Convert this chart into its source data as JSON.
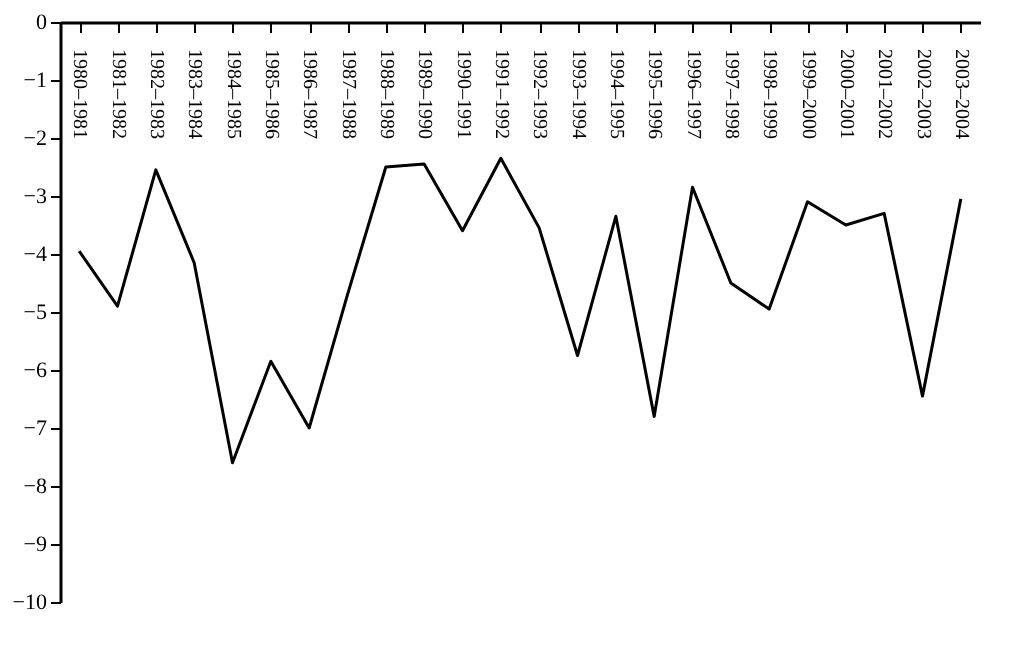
{
  "chart_data": {
    "type": "line",
    "categories": [
      "1980–1981",
      "1981–1982",
      "1982–1983",
      "1983–1984",
      "1984–1985",
      "1985–1986",
      "1986–1987",
      "1987–1988",
      "1988–1989",
      "1989–1990",
      "1990–1991",
      "1991–1992",
      "1992–1993",
      "1993–1994",
      "1994–1995",
      "1995–1996",
      "1996–1997",
      "1997–1998",
      "1998–1999",
      "1999–2000",
      "2000–2001",
      "2001–2002",
      "2002–2003",
      "2003–2004"
    ],
    "series": [
      {
        "color": "#000000",
        "values": [
          -3.95,
          -4.9,
          -2.55,
          -4.15,
          -7.6,
          -5.85,
          -7.0,
          -4.7,
          -2.5,
          -2.45,
          -3.6,
          -2.35,
          -3.55,
          -5.75,
          -3.35,
          -6.8,
          -2.85,
          -4.5,
          -4.95,
          -3.1,
          -3.5,
          -3.3,
          -6.45,
          -3.05
        ]
      }
    ],
    "ylim": [
      -10,
      0
    ],
    "yticks": [
      -10,
      -9,
      -8,
      -7,
      -6,
      -5,
      -4,
      -3,
      -2,
      -1,
      0
    ],
    "grid": false,
    "marker": "none",
    "line_style": "solid"
  }
}
